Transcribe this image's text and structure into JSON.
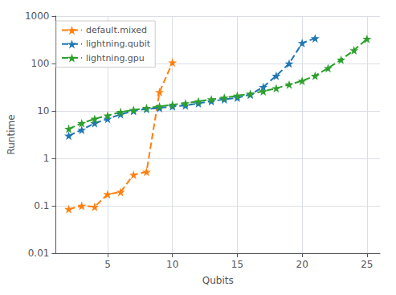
{
  "chart_data": {
    "type": "line",
    "xlabel": "Qubits",
    "ylabel": "Runtime",
    "series": [
      {
        "name": "default.mixed",
        "color": "#ff7f0e",
        "x": [
          2,
          3,
          4,
          5,
          6,
          7,
          8,
          9,
          10
        ],
        "values": [
          0.085,
          0.1,
          0.095,
          0.175,
          0.195,
          0.45,
          0.52,
          25,
          105
        ]
      },
      {
        "name": "lightning.qubit",
        "color": "#1f77b4",
        "x": [
          2,
          3,
          4,
          5,
          6,
          7,
          8,
          9,
          10,
          11,
          12,
          13,
          14,
          15,
          16,
          17,
          18,
          19,
          20,
          21
        ],
        "values": [
          3.0,
          4.0,
          5.5,
          6.8,
          8.5,
          10.0,
          11.0,
          11.5,
          12.5,
          13.0,
          14.5,
          16.0,
          17.5,
          19.0,
          22.0,
          32.0,
          55.0,
          100.0,
          270.0,
          340.0
        ]
      },
      {
        "name": "lightning.gpu",
        "color": "#2ca02c",
        "x": [
          2,
          3,
          4,
          5,
          6,
          7,
          8,
          9,
          10,
          11,
          12,
          13,
          14,
          15,
          16,
          17,
          18,
          19,
          20,
          21,
          22,
          23,
          24,
          25
        ],
        "values": [
          4.2,
          5.5,
          6.8,
          8.0,
          9.5,
          10.5,
          11.5,
          12.5,
          13.5,
          14.5,
          16.0,
          17.5,
          19.0,
          21.0,
          23.0,
          26.0,
          30.0,
          36.0,
          43.0,
          55.0,
          80.0,
          120.0,
          190.0,
          330.0
        ]
      }
    ],
    "xlim": [
      1,
      26
    ],
    "xticks": [
      5,
      10,
      15,
      20,
      25
    ],
    "ylim": [
      0.01,
      1000
    ],
    "yticks": [
      0.01,
      0.1,
      1,
      10,
      100,
      1000
    ],
    "log": "y",
    "grid": true,
    "legend": "upper left",
    "marker": "star",
    "line_style": "dashed"
  }
}
